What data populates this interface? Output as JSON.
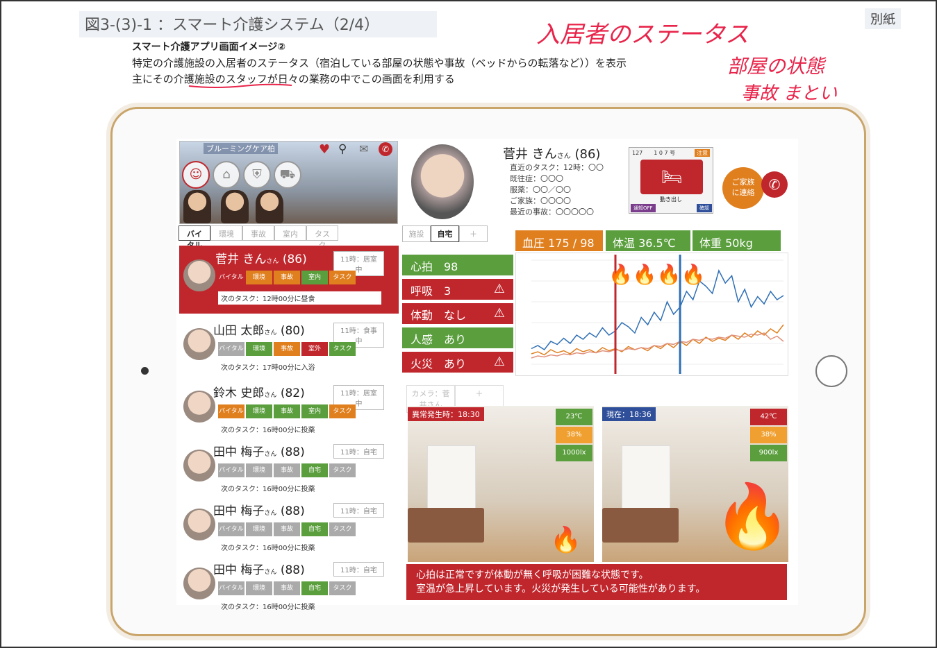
{
  "doc": {
    "title": "図3-(3)-1 ：スマート介護システム（2/4）",
    "bessi": "別紙",
    "sub1": "スマート介護アプリ画面イメージ②",
    "sub2": "特定の介護施設の入居者のステータス（宿泊している部屋の状態や事故（ベッドからの転落など））を表示",
    "sub3": "主にその介護施設のスタッフが日々の業務の中でこの画面を利用する",
    "hand1": "入居者のステータス",
    "hand2": "部屋の状態",
    "hand3": "事故 まとい"
  },
  "facility": {
    "name": "ブルーミングケア柏",
    "icons": [
      "heart-icon",
      "pin-icon",
      "chat-icon",
      "phone-icon"
    ],
    "categories": [
      "person-icon",
      "home-icon",
      "shield-icon",
      "car-icon"
    ]
  },
  "left_tabs": [
    "バイタル",
    "環境",
    "事故",
    "室内",
    "タスク"
  ],
  "right_tabs": [
    "施設",
    "自宅",
    "＋"
  ],
  "residents": [
    {
      "name": "菅井 きん",
      "san": "さん",
      "age": "(86)",
      "status": "11時：居室中",
      "chips": [
        {
          "t": "バイタル",
          "c": "r"
        },
        {
          "t": "環境",
          "c": "o"
        },
        {
          "t": "事故",
          "c": "o"
        },
        {
          "t": "室内",
          "c": "g"
        },
        {
          "t": "タスク",
          "c": "o"
        }
      ],
      "task": "次のタスク：12時00分に昼食"
    },
    {
      "name": "山田 太郎",
      "san": "さん",
      "age": "(80)",
      "status": "11時：食事中",
      "chips": [
        {
          "t": "バイタル",
          "c": "gr"
        },
        {
          "t": "環境",
          "c": "g"
        },
        {
          "t": "事故",
          "c": "o"
        },
        {
          "t": "室外",
          "c": "r"
        },
        {
          "t": "タスク",
          "c": "g"
        }
      ],
      "task": "次のタスク：17時00分に入浴"
    },
    {
      "name": "鈴木 史郎",
      "san": "さん",
      "age": "(82)",
      "status": "11時：居室中",
      "chips": [
        {
          "t": "バイタル",
          "c": "o"
        },
        {
          "t": "環境",
          "c": "g"
        },
        {
          "t": "事故",
          "c": "g"
        },
        {
          "t": "室内",
          "c": "g"
        },
        {
          "t": "タスク",
          "c": "o"
        }
      ],
      "task": "次のタスク：16時00分に投薬"
    },
    {
      "name": "田中 梅子",
      "san": "さん",
      "age": "(88)",
      "status": "11時：自宅",
      "chips": [
        {
          "t": "バイタル",
          "c": "gr"
        },
        {
          "t": "環境",
          "c": "gr"
        },
        {
          "t": "事故",
          "c": "gr"
        },
        {
          "t": "自宅",
          "c": "g"
        },
        {
          "t": "タスク",
          "c": "gr"
        }
      ],
      "task": "次のタスク：16時00分に投薬"
    },
    {
      "name": "田中 梅子",
      "san": "さん",
      "age": "(88)",
      "status": "11時：自宅",
      "chips": [
        {
          "t": "バイタル",
          "c": "gr"
        },
        {
          "t": "環境",
          "c": "gr"
        },
        {
          "t": "事故",
          "c": "gr"
        },
        {
          "t": "自宅",
          "c": "g"
        },
        {
          "t": "タスク",
          "c": "gr"
        }
      ],
      "task": "次のタスク：16時00分に投薬"
    },
    {
      "name": "田中 梅子",
      "san": "さん",
      "age": "(88)",
      "status": "11時：自宅",
      "chips": [
        {
          "t": "バイタル",
          "c": "gr"
        },
        {
          "t": "環境",
          "c": "gr"
        },
        {
          "t": "事故",
          "c": "gr"
        },
        {
          "t": "自宅",
          "c": "g"
        },
        {
          "t": "タスク",
          "c": "gr"
        }
      ],
      "task": "次のタスク：16時00分に投薬"
    }
  ],
  "profile": {
    "name": "菅井 きん",
    "san": "さん",
    "age": "(86)",
    "info": [
      "直近のタスク：12時：〇〇",
      "既往症：〇〇〇",
      "服薬：〇〇／〇〇",
      "ご家族：〇〇〇〇",
      "最近の事故：〇〇〇〇〇"
    ],
    "thumb_top": "127　　1 0 7 号",
    "thumb_badge": "注意",
    "thumb_caption": "動き出し",
    "thumb_btn_l": "通知OFF",
    "thumb_btn_r": "確認",
    "family_btn": "ご家族\nに連絡"
  },
  "metrics": [
    {
      "label": "血圧 175 / 98",
      "color": "#e07f1e"
    },
    {
      "label": "体温 36.5℃",
      "color": "#5a9e3d"
    },
    {
      "label": "体重 50kg",
      "color": "#5a9e3d"
    }
  ],
  "vitals": [
    {
      "label": "心拍　98",
      "color": "#5a9e3d",
      "warn": false
    },
    {
      "label": "呼吸　3",
      "color": "#c0272d",
      "warn": true
    },
    {
      "label": "体動　なし",
      "color": "#c0272d",
      "warn": true
    },
    {
      "label": "人感　あり",
      "color": "#5a9e3d",
      "warn": false
    },
    {
      "label": "火災　あり",
      "color": "#c0272d",
      "warn": true
    }
  ],
  "camera_tabs": [
    "カメラ：菅井さん",
    "＋"
  ],
  "rooms": [
    {
      "label": "異常発生時：18:30",
      "sensors": [
        {
          "t": "23℃",
          "c": "#5a9e3d"
        },
        {
          "t": "38%",
          "c": "#f0a030"
        },
        {
          "t": "1000lx",
          "c": "#5a9e3d"
        }
      ],
      "fire": "small"
    },
    {
      "label": "現在：18:36",
      "sensors": [
        {
          "t": "42℃",
          "c": "#c0272d"
        },
        {
          "t": "38%",
          "c": "#f0a030"
        },
        {
          "t": "900lx",
          "c": "#5a9e3d"
        }
      ],
      "fire": "large"
    }
  ],
  "alert": {
    "line1": "心拍は正常ですが体動が無く呼吸が困難な状態です。",
    "line2": "室温が急上昇しています。火災が発生している可能性があります。"
  },
  "chart_data": {
    "type": "line",
    "x": [
      1,
      2,
      3,
      4,
      5,
      6,
      7,
      8,
      9,
      10,
      11,
      12,
      13,
      14,
      15,
      16,
      17,
      18,
      19,
      20,
      21,
      22,
      23,
      24,
      25,
      26,
      27,
      28,
      29,
      30,
      31,
      32,
      33,
      34,
      35,
      36,
      37,
      38,
      39,
      40
    ],
    "series": [
      {
        "name": "blue",
        "color": "#2f6fb5",
        "values": [
          15,
          18,
          14,
          22,
          19,
          25,
          20,
          28,
          24,
          30,
          26,
          35,
          28,
          32,
          40,
          36,
          30,
          45,
          38,
          50,
          42,
          60,
          48,
          55,
          70,
          62,
          80,
          75,
          68,
          90,
          78,
          85,
          60,
          72,
          55,
          65,
          58,
          70,
          62,
          66
        ]
      },
      {
        "name": "orange",
        "color": "#e07f1e",
        "values": [
          10,
          12,
          9,
          14,
          11,
          13,
          10,
          15,
          12,
          14,
          11,
          16,
          13,
          15,
          12,
          17,
          14,
          16,
          13,
          18,
          15,
          20,
          16,
          22,
          18,
          24,
          20,
          26,
          22,
          25,
          23,
          28,
          24,
          30,
          26,
          32,
          28,
          34,
          30,
          38
        ]
      },
      {
        "name": "pink",
        "color": "#e0907a",
        "values": [
          6,
          8,
          7,
          9,
          8,
          10,
          9,
          11,
          10,
          12,
          11,
          13,
          12,
          14,
          13,
          15,
          14,
          16,
          15,
          18,
          17,
          20,
          19,
          22,
          21,
          24,
          23,
          25,
          24,
          26,
          25,
          28,
          27,
          26,
          29,
          28,
          30,
          24,
          27,
          22
        ]
      }
    ],
    "ylim": [
      0,
      100
    ],
    "markers": [
      {
        "x": 14,
        "color": "#c0272d"
      },
      {
        "x": 24,
        "color": "#2f6fb5"
      }
    ]
  }
}
